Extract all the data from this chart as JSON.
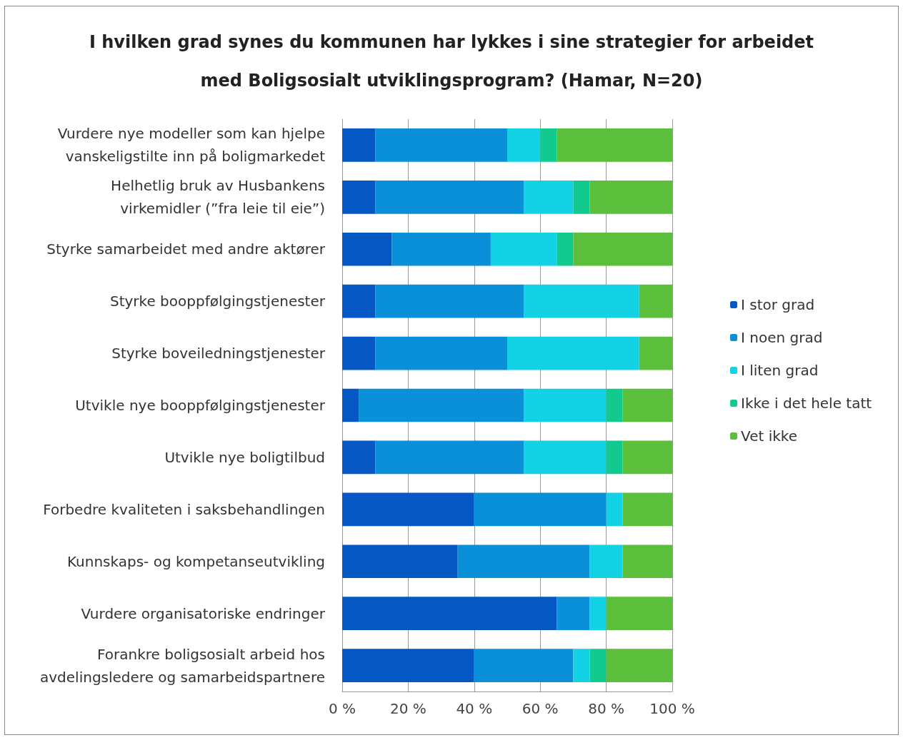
{
  "chart_data": {
    "type": "bar",
    "orientation": "horizontal",
    "stacked": true,
    "title": "I hvilken grad synes du kommunen har lykkes i sine strategier for arbeidet\nmed Boligsosialt utviklingsprogram? (Hamar, N=20)",
    "categories": [
      "Vurdere nye modeller som kan hjelpe\nvanskeligstilte inn på boligmarkedet",
      "Helhetlig bruk av Husbankens\nvirkemidler (”fra leie til eie”)",
      "Styrke samarbeidet med andre aktører",
      "Styrke booppfølgingstjenester",
      "Styrke boveiledningstjenester",
      "Utvikle nye booppfølgingstjenester",
      "Utvikle nye boligtilbud",
      "Forbedre kvaliteten i saksbehandlingen",
      "Kunnskaps- og kompetanseutvikling",
      "Vurdere organisatoriske endringer",
      "Forankre boligsosialt arbeid hos\navdelingsledere og samarbeidspartnere"
    ],
    "series": [
      {
        "name": "I stor grad",
        "color": "#0558c4",
        "values": [
          10,
          10,
          15,
          10,
          10,
          5,
          10,
          40,
          35,
          65,
          40
        ]
      },
      {
        "name": "I noen grad",
        "color": "#0a90d8",
        "values": [
          40,
          45,
          30,
          45,
          40,
          50,
          45,
          40,
          40,
          10,
          30
        ]
      },
      {
        "name": "I liten grad",
        "color": "#14d2e6",
        "values": [
          10,
          15,
          20,
          35,
          40,
          25,
          25,
          5,
          10,
          5,
          5
        ]
      },
      {
        "name": "Ikke i det hele tatt",
        "color": "#12c98e",
        "values": [
          5,
          5,
          5,
          0,
          0,
          5,
          5,
          0,
          0,
          0,
          5
        ]
      },
      {
        "name": "Vet ikke",
        "color": "#5cbf3c",
        "values": [
          35,
          25,
          30,
          10,
          10,
          15,
          15,
          15,
          15,
          20,
          20
        ]
      }
    ],
    "xlim": [
      0,
      100
    ],
    "xticks": [
      {
        "value": 0,
        "label": "0 %"
      },
      {
        "value": 20,
        "label": "20 %"
      },
      {
        "value": 40,
        "label": "40 %"
      },
      {
        "value": 60,
        "label": "60 %"
      },
      {
        "value": 80,
        "label": "80 %"
      },
      {
        "value": 100,
        "label": "100 %"
      }
    ],
    "grid": "x",
    "legend": "right"
  }
}
